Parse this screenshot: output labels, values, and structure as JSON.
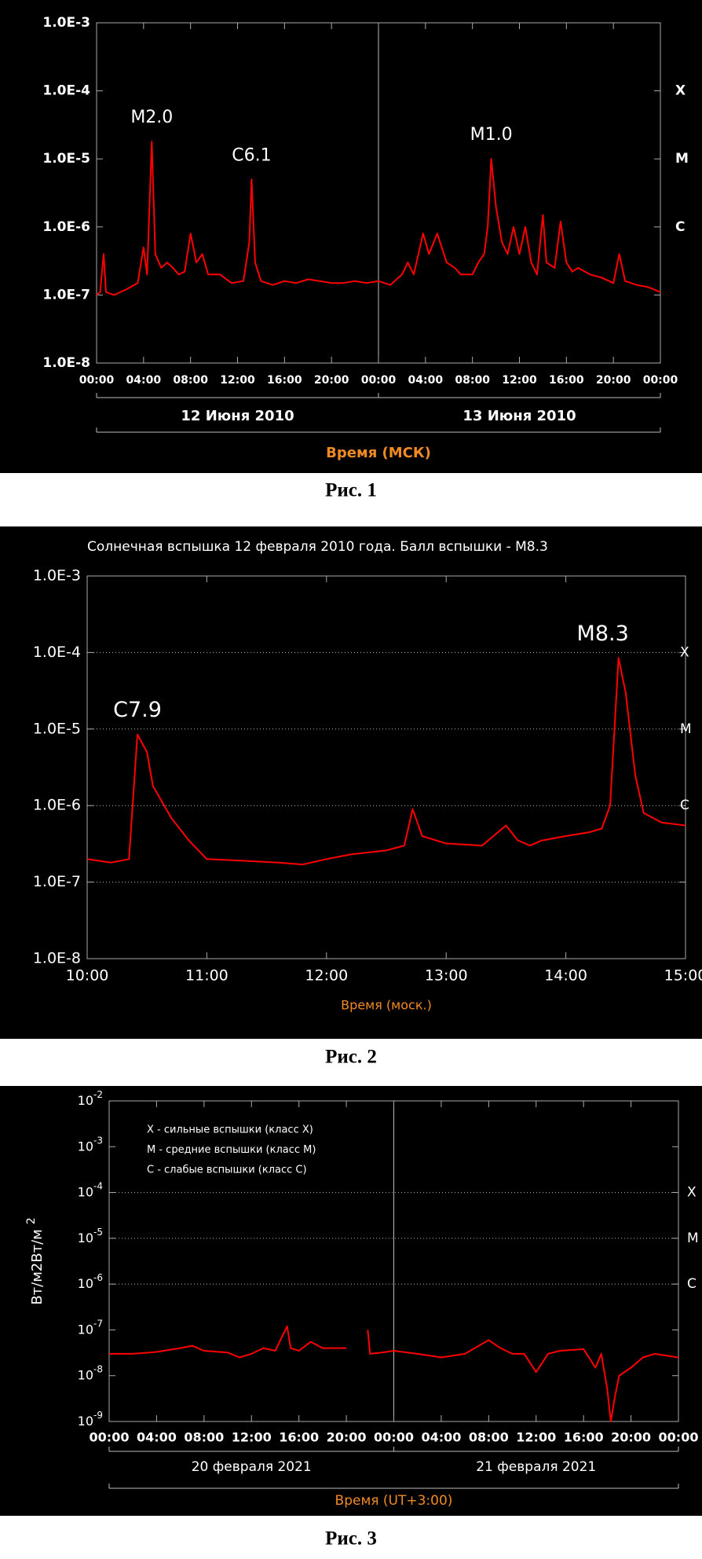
{
  "chart_data": [
    {
      "type": "line",
      "log_scale": true,
      "grid": false,
      "bold": true,
      "ylim": [
        1e-08,
        0.001
      ],
      "yticks": [
        {
          "value": 1e-08,
          "label": "1.0E-8"
        },
        {
          "value": 1e-07,
          "label": "1.0E-7"
        },
        {
          "value": 1e-06,
          "label": "1.0E-6"
        },
        {
          "value": 1e-05,
          "label": "1.0E-5"
        },
        {
          "value": 0.0001,
          "label": "1.0E-4"
        },
        {
          "value": 0.001,
          "label": "1.0E-3"
        }
      ],
      "xlim": [
        0,
        48
      ],
      "xticks": [
        {
          "value": 0,
          "label": "00:00"
        },
        {
          "value": 4,
          "label": "04:00"
        },
        {
          "value": 8,
          "label": "08:00"
        },
        {
          "value": 12,
          "label": "12:00"
        },
        {
          "value": 16,
          "label": "16:00"
        },
        {
          "value": 20,
          "label": "20:00"
        },
        {
          "value": 24,
          "label": "00:00"
        },
        {
          "value": 28,
          "label": "04:00"
        },
        {
          "value": 32,
          "label": "08:00"
        },
        {
          "value": 36,
          "label": "12:00"
        },
        {
          "value": 40,
          "label": "16:00"
        },
        {
          "value": 44,
          "label": "20:00"
        },
        {
          "value": 48,
          "label": "00:00"
        }
      ],
      "days": [
        "12 Июня 2010",
        "13 Июня 2010"
      ],
      "xlabel": "Время (МСК)",
      "class_labels": [
        {
          "value": 0.0001,
          "label": "X"
        },
        {
          "value": 1e-05,
          "label": "M"
        },
        {
          "value": 1e-06,
          "label": "C"
        }
      ],
      "annotations": [
        {
          "text": "M2.0",
          "x": 4.7,
          "y": 1.8e-05
        },
        {
          "text": "C6.1",
          "x": 13.2,
          "y": 5e-06
        },
        {
          "text": "M1.0",
          "x": 33.6,
          "y": 1e-05
        }
      ],
      "x": [
        0,
        0.3,
        0.6,
        0.8,
        1.5,
        2.5,
        3.5,
        4.0,
        4.3,
        4.7,
        5.0,
        5.5,
        6.0,
        6.5,
        7.0,
        7.5,
        8.0,
        8.5,
        9.0,
        9.5,
        10.5,
        11.5,
        12.5,
        13.0,
        13.2,
        13.5,
        14,
        15,
        16,
        17,
        18,
        19,
        20,
        21,
        22,
        23,
        24,
        25,
        26,
        26.5,
        27,
        27.8,
        28.3,
        29,
        29.8,
        30.5,
        31,
        32,
        32.5,
        33,
        33.3,
        33.6,
        34,
        34.5,
        35,
        35.5,
        36,
        36.5,
        37,
        37.5,
        38,
        38.3,
        39,
        39.5,
        40,
        40.5,
        41,
        42,
        43,
        44,
        44.5,
        45,
        46,
        47,
        48
      ],
      "series": [
        {
          "name": "flux",
          "color": "#ff0000",
          "values": [
            1e-07,
            1.1e-07,
            4e-07,
            1.1e-07,
            1e-07,
            1.2e-07,
            1.5e-07,
            5e-07,
            2e-07,
            1.8e-05,
            4e-07,
            2.5e-07,
            3e-07,
            2.5e-07,
            2e-07,
            2.2e-07,
            8e-07,
            3e-07,
            4e-07,
            2e-07,
            2e-07,
            1.5e-07,
            1.6e-07,
            6e-07,
            5e-06,
            3e-07,
            1.6e-07,
            1.4e-07,
            1.6e-07,
            1.5e-07,
            1.7e-07,
            1.6e-07,
            1.5e-07,
            1.5e-07,
            1.6e-07,
            1.5e-07,
            1.6e-07,
            1.4e-07,
            2e-07,
            3e-07,
            2e-07,
            8e-07,
            4e-07,
            8e-07,
            3e-07,
            2.5e-07,
            2e-07,
            2e-07,
            3e-07,
            4e-07,
            1e-06,
            1e-05,
            2e-06,
            6e-07,
            4e-07,
            1e-06,
            4e-07,
            1e-06,
            3e-07,
            2e-07,
            1.5e-06,
            3e-07,
            2.5e-07,
            1.2e-06,
            3e-07,
            2.2e-07,
            2.5e-07,
            2e-07,
            1.8e-07,
            1.5e-07,
            4e-07,
            1.6e-07,
            1.4e-07,
            1.3e-07,
            1.1e-07
          ]
        }
      ]
    },
    {
      "type": "line",
      "log_scale": true,
      "grid": true,
      "bold": false,
      "title": "Солнечная вспышка 12 февраля 2010 года. Балл вспышки - M8.3",
      "ylim": [
        1e-08,
        0.001
      ],
      "yticks": [
        {
          "value": 1e-08,
          "label": "1.0E-8"
        },
        {
          "value": 1e-07,
          "label": "1.0E-7"
        },
        {
          "value": 1e-06,
          "label": "1.0E-6"
        },
        {
          "value": 1e-05,
          "label": "1.0E-5"
        },
        {
          "value": 0.0001,
          "label": "1.0E-4"
        },
        {
          "value": 0.001,
          "label": "1.0E-3"
        }
      ],
      "xlim": [
        10,
        15
      ],
      "xticks": [
        {
          "value": 10,
          "label": "10:00"
        },
        {
          "value": 11,
          "label": "11:00"
        },
        {
          "value": 12,
          "label": "12:00"
        },
        {
          "value": 13,
          "label": "13:00"
        },
        {
          "value": 14,
          "label": "14:00"
        },
        {
          "value": 15,
          "label": "15:00"
        }
      ],
      "xlabel": "Время (моск.)",
      "class_labels": [
        {
          "value": 0.0001,
          "label": "X"
        },
        {
          "value": 1e-05,
          "label": "M"
        },
        {
          "value": 1e-06,
          "label": "C"
        }
      ],
      "annotations": [
        {
          "text": "C7.9",
          "x": 10.42,
          "y": 8.5e-06
        },
        {
          "text": "M8.3",
          "x": 14.44,
          "y": 8.5e-05
        }
      ],
      "x": [
        10,
        10.2,
        10.35,
        10.42,
        10.5,
        10.55,
        10.7,
        10.85,
        11,
        11.3,
        11.6,
        11.8,
        12,
        12.2,
        12.5,
        12.65,
        12.72,
        12.8,
        13,
        13.3,
        13.5,
        13.6,
        13.7,
        13.8,
        14,
        14.2,
        14.3,
        14.37,
        14.44,
        14.5,
        14.58,
        14.65,
        14.8,
        15
      ],
      "series": [
        {
          "name": "flux",
          "color": "#ff0000",
          "values": [
            2e-07,
            1.8e-07,
            2e-07,
            8.5e-06,
            5e-06,
            1.8e-06,
            7e-07,
            3.5e-07,
            2e-07,
            1.9e-07,
            1.8e-07,
            1.7e-07,
            2e-07,
            2.3e-07,
            2.6e-07,
            3e-07,
            9e-07,
            4e-07,
            3.2e-07,
            3e-07,
            5.5e-07,
            3.5e-07,
            3e-07,
            3.5e-07,
            4e-07,
            4.5e-07,
            5e-07,
            1e-06,
            8.5e-05,
            3e-05,
            2.5e-06,
            8e-07,
            6e-07,
            5.5e-07
          ]
        }
      ]
    },
    {
      "type": "line",
      "log_scale": true,
      "grid": true,
      "bold": false,
      "tick_style": "power",
      "ylabel": "Вт/м2",
      "ylim": [
        1e-09,
        0.01
      ],
      "yticks": [
        {
          "value": 1e-09,
          "label": "10-9"
        },
        {
          "value": 1e-08,
          "label": "10-8"
        },
        {
          "value": 1e-07,
          "label": "10-7"
        },
        {
          "value": 1e-06,
          "label": "10-6"
        },
        {
          "value": 1e-05,
          "label": "10-5"
        },
        {
          "value": 0.0001,
          "label": "10-4"
        },
        {
          "value": 0.001,
          "label": "10-3"
        },
        {
          "value": 0.01,
          "label": "10-2"
        }
      ],
      "xlim": [
        0,
        48
      ],
      "xticks": [
        {
          "value": 0,
          "label": "00:00"
        },
        {
          "value": 4,
          "label": "04:00"
        },
        {
          "value": 8,
          "label": "08:00"
        },
        {
          "value": 12,
          "label": "12:00"
        },
        {
          "value": 16,
          "label": "16:00"
        },
        {
          "value": 20,
          "label": "20:00"
        },
        {
          "value": 24,
          "label": "00:00"
        },
        {
          "value": 28,
          "label": "04:00"
        },
        {
          "value": 32,
          "label": "08:00"
        },
        {
          "value": 36,
          "label": "12:00"
        },
        {
          "value": 40,
          "label": "16:00"
        },
        {
          "value": 44,
          "label": "20:00"
        },
        {
          "value": 48,
          "label": "00:00"
        }
      ],
      "days": [
        "20 февраля 2021",
        "21 февраля 2021"
      ],
      "xlabel": "Время (UT+3:00)",
      "legend": [
        "X - сильные вспышки (класс X)",
        "M - средние вспышки (класс M)",
        "C - слабые вспышки (класс C)"
      ],
      "class_labels": [
        {
          "value": 0.0001,
          "label": "X"
        },
        {
          "value": 1e-05,
          "label": "M"
        },
        {
          "value": 1e-06,
          "label": "C"
        }
      ],
      "x": [
        0,
        2,
        4,
        6,
        7,
        8,
        10,
        11,
        12,
        13,
        14,
        15,
        15.3,
        16,
        17,
        18,
        20,
        21,
        21.8,
        22,
        23,
        24,
        26,
        28,
        30,
        32,
        33,
        34,
        35,
        36,
        37,
        38,
        40,
        41,
        41.5,
        42,
        42.3,
        42.6,
        43,
        44,
        45,
        46,
        48
      ],
      "series": [
        {
          "name": "flux",
          "color": "#ff0000",
          "values": [
            3e-08,
            3e-08,
            3.3e-08,
            4e-08,
            4.5e-08,
            3.5e-08,
            3.2e-08,
            2.5e-08,
            3e-08,
            4e-08,
            3.5e-08,
            1.2e-07,
            4e-08,
            3.5e-08,
            5.5e-08,
            4e-08,
            4e-08,
            null,
            1e-07,
            3e-08,
            3.2e-08,
            3.5e-08,
            3e-08,
            2.5e-08,
            3e-08,
            6e-08,
            4e-08,
            3e-08,
            3e-08,
            1.2e-08,
            3e-08,
            3.5e-08,
            3.8e-08,
            1.5e-08,
            3e-08,
            5e-09,
            1e-09,
            3e-09,
            1e-08,
            1.5e-08,
            2.5e-08,
            3e-08,
            2.5e-08
          ]
        }
      ]
    }
  ],
  "captions": [
    "Рис. 1",
    "Рис. 2",
    "Рис. 3"
  ]
}
